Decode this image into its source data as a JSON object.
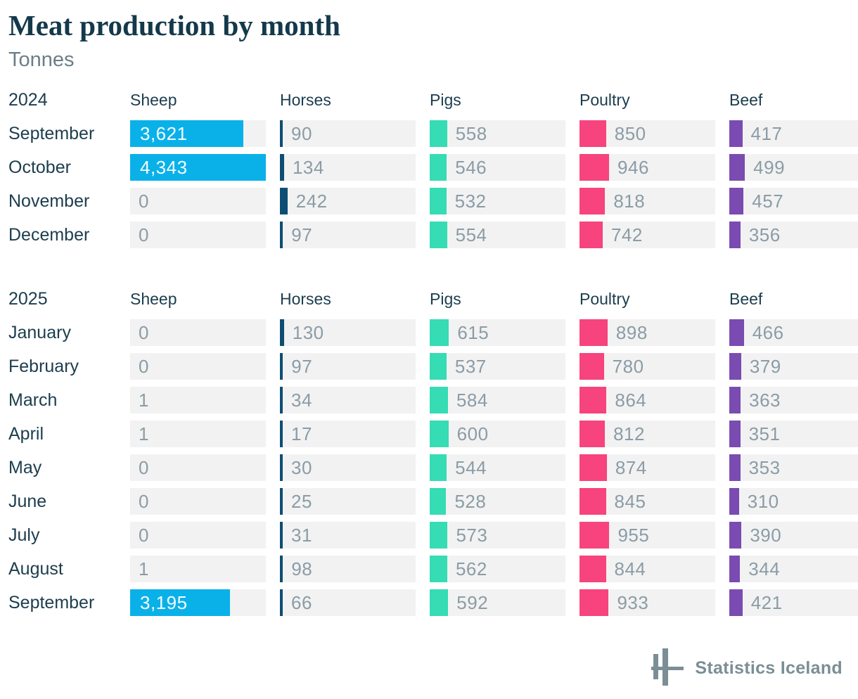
{
  "page": {
    "title": "Meat production by month",
    "subtitle": "Tonnes",
    "footer": {
      "logo_icon": "statistics-iceland-logo",
      "brand": "Statistics Iceland"
    }
  },
  "colors": {
    "sheep": "#0ab1e9",
    "horses": "#0e4e73",
    "pigs": "#35dcb4",
    "poultry": "#f7437e",
    "beef": "#7a4bb1",
    "track": "#f2f2f2",
    "value_text": "#8b9ca6",
    "value_text_on_bar": "#ffffff",
    "heading_text": "#1c3d4e",
    "title_text": "#14394b",
    "subtitle_text": "#6b7e88",
    "brand": "#7b8e96"
  },
  "chart_data": {
    "type": "bar",
    "title": "Meat production by month",
    "unit": "Tonnes",
    "orientation": "horizontal",
    "value_axis_max": 4343,
    "grid": false,
    "legend": "none",
    "columns": [
      "Sheep",
      "Horses",
      "Pigs",
      "Poultry",
      "Beef"
    ],
    "sections": [
      {
        "year": "2024",
        "categories": [
          "September",
          "October",
          "November",
          "December"
        ],
        "series": [
          {
            "name": "Sheep",
            "values": [
              3621,
              4343,
              0,
              0
            ]
          },
          {
            "name": "Horses",
            "values": [
              90,
              134,
              242,
              97
            ]
          },
          {
            "name": "Pigs",
            "values": [
              558,
              546,
              532,
              554
            ]
          },
          {
            "name": "Poultry",
            "values": [
              850,
              946,
              818,
              742
            ]
          },
          {
            "name": "Beef",
            "values": [
              417,
              499,
              457,
              356
            ]
          }
        ]
      },
      {
        "year": "2025",
        "categories": [
          "January",
          "February",
          "March",
          "April",
          "May",
          "June",
          "July",
          "August",
          "September"
        ],
        "series": [
          {
            "name": "Sheep",
            "values": [
              0,
              0,
              1,
              1,
              0,
              0,
              0,
              1,
              3195
            ]
          },
          {
            "name": "Horses",
            "values": [
              130,
              97,
              34,
              17,
              30,
              25,
              31,
              98,
              66
            ]
          },
          {
            "name": "Pigs",
            "values": [
              615,
              537,
              584,
              600,
              544,
              528,
              573,
              562,
              592
            ]
          },
          {
            "name": "Poultry",
            "values": [
              898,
              780,
              864,
              812,
              874,
              845,
              955,
              844,
              933
            ]
          },
          {
            "name": "Beef",
            "values": [
              466,
              379,
              363,
              351,
              353,
              310,
              390,
              344,
              421
            ]
          }
        ]
      }
    ]
  }
}
